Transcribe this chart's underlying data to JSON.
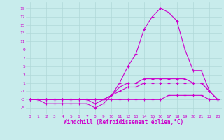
{
  "xlabel": "Windchill (Refroidissement éolien,°C)",
  "background_color": "#c8ecec",
  "line_color": "#cc00cc",
  "grid_color": "#b0d8d8",
  "x_ticks": [
    0,
    1,
    2,
    3,
    4,
    5,
    6,
    7,
    8,
    9,
    10,
    11,
    12,
    13,
    14,
    15,
    16,
    17,
    18,
    19,
    20,
    21,
    22,
    23
  ],
  "y_ticks": [
    -5,
    -3,
    -1,
    1,
    3,
    5,
    7,
    9,
    11,
    13,
    15,
    17,
    19
  ],
  "xlim": [
    -0.5,
    23.5
  ],
  "ylim": [
    -6.5,
    20.5
  ],
  "series": [
    [
      0,
      1,
      2,
      3,
      4,
      5,
      6,
      7,
      8,
      9,
      10,
      11,
      12,
      13,
      14,
      15,
      16,
      17,
      18,
      19,
      20,
      21,
      22,
      23
    ],
    [
      -3,
      -3,
      -4,
      -4,
      -4,
      -4,
      -4,
      -4,
      -5,
      -4,
      -2,
      1,
      5,
      8,
      14,
      17,
      19,
      18,
      16,
      9,
      4,
      4,
      -1,
      -3
    ],
    [
      -3,
      -3,
      -3,
      -3,
      -3,
      -3,
      -3,
      -3,
      -4,
      -3,
      -2,
      0,
      1,
      1,
      2,
      2,
      2,
      2,
      2,
      2,
      1,
      1,
      -1,
      -3
    ],
    [
      -3,
      -3,
      -3,
      -3,
      -3,
      -3,
      -3,
      -3,
      -3,
      -3,
      -3,
      -3,
      -3,
      -3,
      -3,
      -3,
      -3,
      -2,
      -2,
      -2,
      -2,
      -2,
      -3,
      -3
    ],
    [
      -3,
      -3,
      -3,
      -3,
      -3,
      -3,
      -3,
      -3,
      -3,
      -3,
      -2,
      -1,
      0,
      0,
      1,
      1,
      1,
      1,
      1,
      1,
      1,
      1,
      -1,
      -3
    ]
  ]
}
